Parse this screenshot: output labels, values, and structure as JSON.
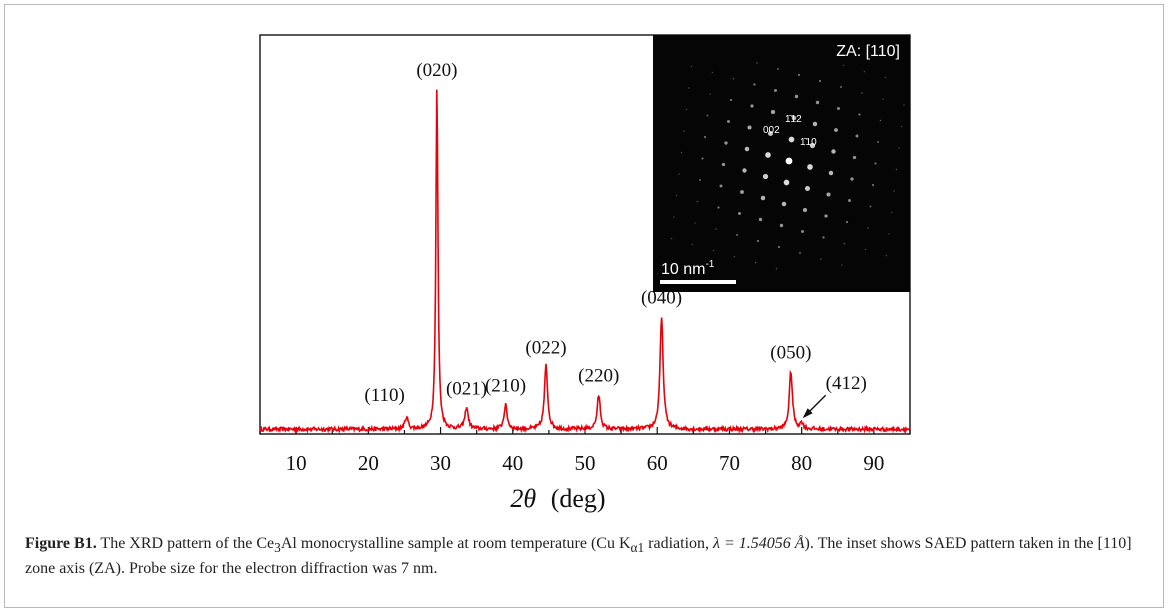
{
  "chart_data": {
    "type": "line",
    "xlabel_symbol": "2θ",
    "xlabel_unit": "(deg)",
    "xlim": [
      5,
      95
    ],
    "ylim": [
      0,
      100
    ],
    "x_ticks": [
      10,
      20,
      30,
      40,
      50,
      60,
      70,
      80,
      90
    ],
    "grid": false,
    "line_color": "#e8000b",
    "baseline": 1.2,
    "peaks": [
      {
        "label": "(110)",
        "x": 25.3,
        "height": 3
      },
      {
        "label": "(020)",
        "x": 29.5,
        "height": 86
      },
      {
        "label": "(021)",
        "x": 33.6,
        "height": 5.5
      },
      {
        "label": "(210)",
        "x": 39.0,
        "height": 6
      },
      {
        "label": "(022)",
        "x": 44.6,
        "height": 16
      },
      {
        "label": "(220)",
        "x": 51.9,
        "height": 8.5
      },
      {
        "label": "(040)",
        "x": 60.6,
        "height": 28
      },
      {
        "label": "(050)",
        "x": 78.5,
        "height": 14.5
      },
      {
        "label": "(412)",
        "x": 80.0,
        "height": 1.5
      }
    ],
    "arrow_annotation": {
      "label": "(412)",
      "x": 80.0
    }
  },
  "inset": {
    "title": "ZA: [110]",
    "scale_bar_value": "10 nm",
    "scale_bar_exponent": "-1",
    "spot_labels": [
      "002",
      "1̄12",
      "1̄10"
    ]
  },
  "caption": {
    "label": "Figure B1.",
    "text_1": " The XRD pattern of the Ce",
    "sub_1": "3",
    "text_2": "Al monocrystalline sample at room temperature (Cu K",
    "sub_2": "α1",
    "text_3": " radiation, ",
    "lambda": "λ = 1.54056 Å",
    "text_4": "). The inset shows SAED pattern taken in the [110] zone axis (ZA). Probe size for the electron diffraction was 7 nm."
  }
}
